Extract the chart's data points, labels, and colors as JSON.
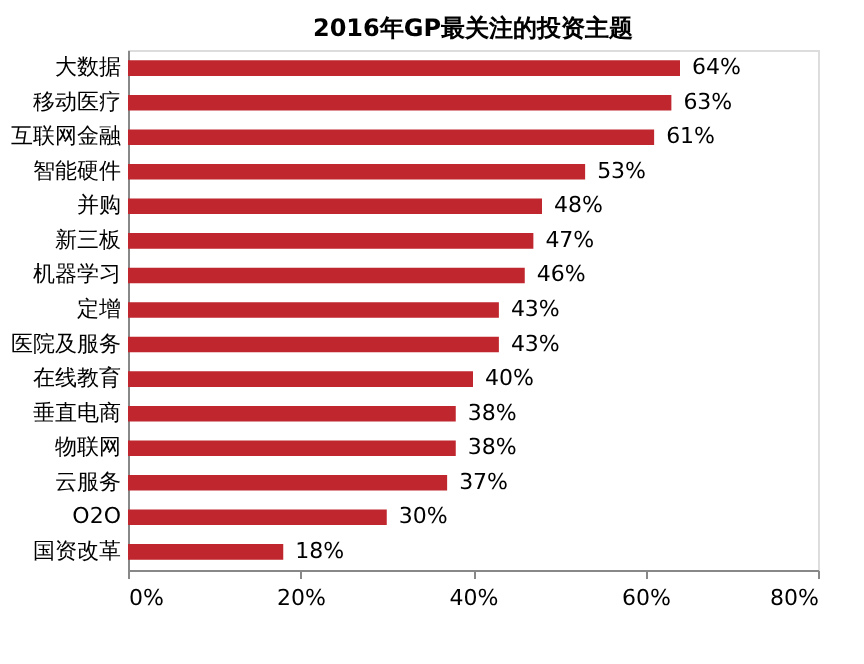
{
  "chart_data": {
    "type": "bar",
    "orientation": "horizontal",
    "title": "2016年GP最关注的投资主题",
    "categories": [
      "大数据",
      "移动医疗",
      "互联网金融",
      "智能硬件",
      "并购",
      "新三板",
      "机器学习",
      "定增",
      "医院及服务",
      "在线教育",
      "垂直电商",
      "物联网",
      "云服务",
      "O2O",
      "国资改革"
    ],
    "values": [
      64,
      63,
      61,
      53,
      48,
      47,
      46,
      43,
      43,
      40,
      38,
      38,
      37,
      30,
      18
    ],
    "value_labels": [
      "64%",
      "63%",
      "61%",
      "53%",
      "48%",
      "47%",
      "46%",
      "43%",
      "43%",
      "40%",
      "38%",
      "38%",
      "37%",
      "30%",
      "18%"
    ],
    "color": "#c0262d",
    "xlim": [
      0,
      80
    ],
    "xticks": [
      {
        "value": 0,
        "label": "0%"
      },
      {
        "value": 20,
        "label": "20%"
      },
      {
        "value": 40,
        "label": "40%"
      },
      {
        "value": 60,
        "label": "60%"
      },
      {
        "value": 80,
        "label": "80%"
      }
    ],
    "grid": false
  }
}
